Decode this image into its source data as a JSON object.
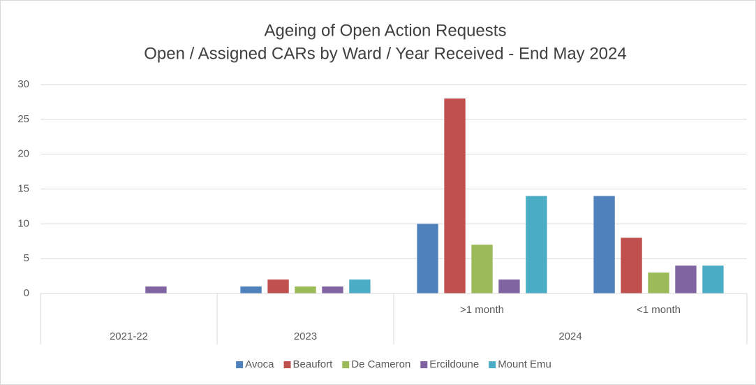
{
  "chart_data": {
    "type": "bar",
    "title": "Ageing of Open Action Requests",
    "subtitle": "Open / Assigned CARs by Ward / Year Received - End May 2024",
    "category_groups": [
      {
        "label": "2021-22",
        "items": [
          null
        ]
      },
      {
        "label": "2023",
        "items": [
          null
        ]
      },
      {
        "label": "2024",
        "items": [
          ">1 month",
          "<1 month"
        ]
      }
    ],
    "series": [
      {
        "name": "Avoca",
        "color": "#4f81bd",
        "values": [
          0,
          1,
          10,
          14
        ]
      },
      {
        "name": "Beaufort",
        "color": "#c0504d",
        "values": [
          0,
          2,
          28,
          8
        ]
      },
      {
        "name": "De Cameron",
        "color": "#9bbb59",
        "values": [
          0,
          1,
          7,
          3
        ]
      },
      {
        "name": "Ercildoune",
        "color": "#8064a2",
        "values": [
          1,
          1,
          2,
          4
        ]
      },
      {
        "name": "Mount Emu",
        "color": "#4bacc6",
        "values": [
          0,
          2,
          14,
          4
        ]
      }
    ],
    "ylim": [
      0,
      30
    ],
    "yticks": [
      0,
      5,
      10,
      15,
      20,
      25,
      30
    ],
    "grid": true,
    "legend": "bottom"
  }
}
